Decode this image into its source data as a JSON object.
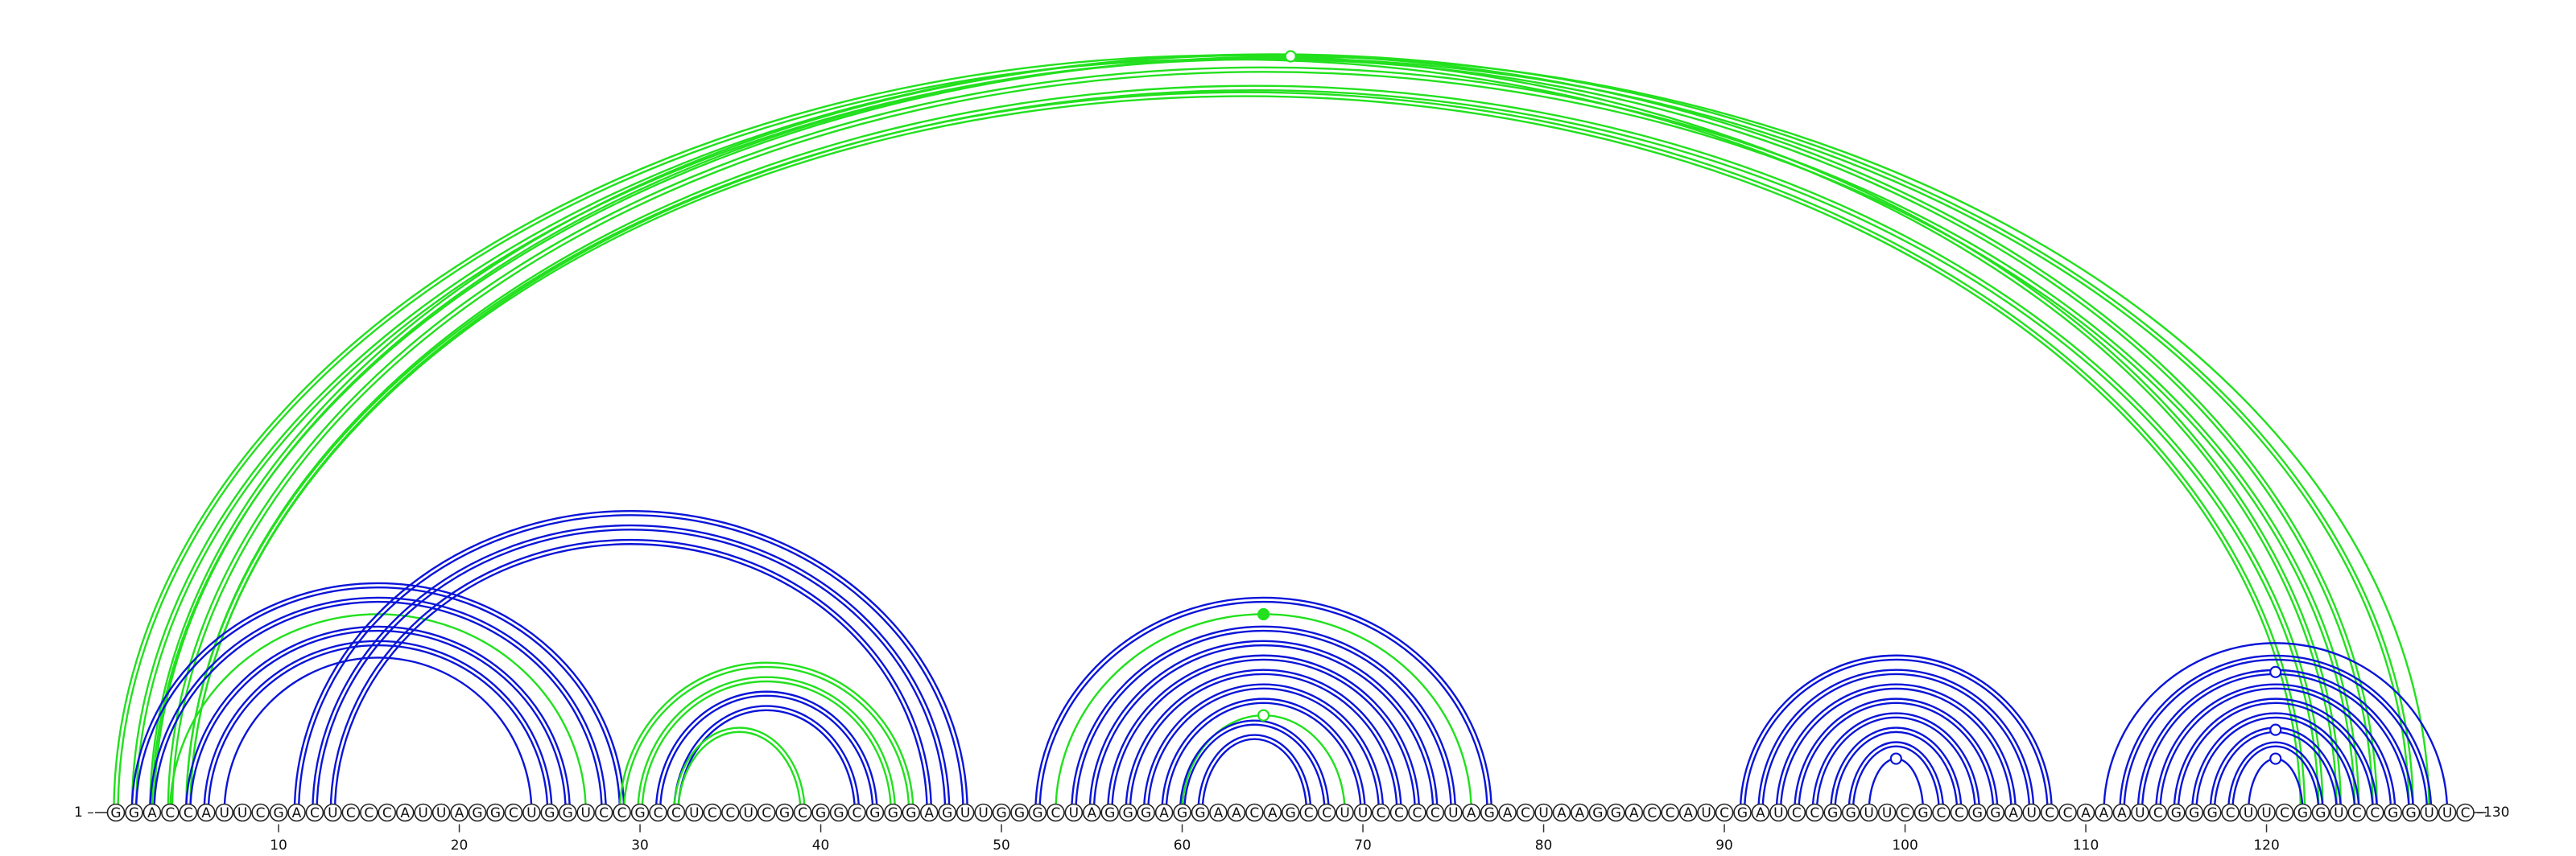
{
  "diagram": {
    "sequence": "GGACCAUUCGACUCCCAUUAGGCUGGUCCGCCUCCUCGCGGCGGGAGUUGGGCUAGGGAGGAACAGCCUUCCCCUAGACUAAGGACCAUCGAUCCGGUUCGCCGGAUCCAAAUCGGGCUUCGGUCCGGUUC",
    "start_label": "1 –",
    "end_label": "–130",
    "tick_labels": [
      "10",
      "20",
      "30",
      "40",
      "50",
      "60",
      "70",
      "80",
      "90",
      "100",
      "110",
      "120"
    ],
    "colors": {
      "blue": "#0a14d8",
      "green": "#22e01e",
      "circle_stroke": "#222222",
      "background": "#ffffff"
    }
  },
  "chart_data": {
    "type": "arc-diagram",
    "positions": [
      1,
      130
    ],
    "tick_values": [
      10,
      20,
      30,
      40,
      50,
      60,
      70,
      80,
      90,
      100,
      110,
      120
    ],
    "arcs": [
      {
        "i": 1,
        "j": 124,
        "color": "green",
        "double": true
      },
      {
        "i": 2,
        "j": 128,
        "color": "green",
        "double": true
      },
      {
        "i": 3,
        "j": 126,
        "color": "green",
        "double": true
      },
      {
        "i": 3,
        "j": 129,
        "color": "green",
        "double": false,
        "marker": "open"
      },
      {
        "i": 4,
        "j": 125,
        "color": "green",
        "double": true
      },
      {
        "i": 5,
        "j": 122,
        "color": "green",
        "double": true
      },
      {
        "i": 5,
        "j": 123,
        "color": "green",
        "double": true
      },
      {
        "i": 2,
        "j": 29,
        "color": "blue",
        "double": true
      },
      {
        "i": 3,
        "j": 28,
        "color": "blue",
        "double": true
      },
      {
        "i": 4,
        "j": 27,
        "color": "green",
        "double": false
      },
      {
        "i": 5,
        "j": 26,
        "color": "blue",
        "double": true
      },
      {
        "i": 6,
        "j": 25,
        "color": "blue",
        "double": true
      },
      {
        "i": 7,
        "j": 24,
        "color": "blue",
        "double": false
      },
      {
        "i": 11,
        "j": 48,
        "color": "blue",
        "double": true
      },
      {
        "i": 12,
        "j": 47,
        "color": "blue",
        "double": true
      },
      {
        "i": 13,
        "j": 46,
        "color": "blue",
        "double": true
      },
      {
        "i": 29,
        "j": 45,
        "color": "green",
        "double": true
      },
      {
        "i": 30,
        "j": 44,
        "color": "green",
        "double": true
      },
      {
        "i": 31,
        "j": 43,
        "color": "blue",
        "double": true
      },
      {
        "i": 32,
        "j": 42,
        "color": "blue",
        "double": true
      },
      {
        "i": 32,
        "j": 39,
        "color": "green",
        "double": true
      },
      {
        "i": 52,
        "j": 77,
        "color": "blue",
        "double": true
      },
      {
        "i": 53,
        "j": 76,
        "color": "green",
        "double": false,
        "marker": "filled"
      },
      {
        "i": 54,
        "j": 75,
        "color": "blue",
        "double": true
      },
      {
        "i": 55,
        "j": 74,
        "color": "blue",
        "double": true
      },
      {
        "i": 56,
        "j": 73,
        "color": "blue",
        "double": true
      },
      {
        "i": 57,
        "j": 72,
        "color": "blue",
        "double": true
      },
      {
        "i": 58,
        "j": 71,
        "color": "blue",
        "double": true
      },
      {
        "i": 59,
        "j": 70,
        "color": "blue",
        "double": true
      },
      {
        "i": 60,
        "j": 69,
        "color": "green",
        "double": false,
        "marker": "open"
      },
      {
        "i": 60,
        "j": 68,
        "color": "blue",
        "double": true
      },
      {
        "i": 61,
        "j": 67,
        "color": "blue",
        "double": true
      },
      {
        "i": 91,
        "j": 108,
        "color": "blue",
        "double": true
      },
      {
        "i": 92,
        "j": 107,
        "color": "blue",
        "double": true
      },
      {
        "i": 93,
        "j": 106,
        "color": "blue",
        "double": true
      },
      {
        "i": 94,
        "j": 105,
        "color": "blue",
        "double": true
      },
      {
        "i": 95,
        "j": 104,
        "color": "blue",
        "double": true
      },
      {
        "i": 96,
        "j": 103,
        "color": "blue",
        "double": true
      },
      {
        "i": 97,
        "j": 102,
        "color": "blue",
        "double": true
      },
      {
        "i": 98,
        "j": 101,
        "color": "blue",
        "double": false,
        "marker": "open"
      },
      {
        "i": 111,
        "j": 130,
        "color": "blue",
        "double": false
      },
      {
        "i": 112,
        "j": 129,
        "color": "blue",
        "double": true
      },
      {
        "i": 113,
        "j": 128,
        "color": "blue",
        "double": true,
        "marker": "open"
      },
      {
        "i": 114,
        "j": 127,
        "color": "blue",
        "double": true
      },
      {
        "i": 115,
        "j": 126,
        "color": "blue",
        "double": true
      },
      {
        "i": 116,
        "j": 125,
        "color": "blue",
        "double": true
      },
      {
        "i": 117,
        "j": 124,
        "color": "blue",
        "double": true,
        "marker": "open"
      },
      {
        "i": 118,
        "j": 123,
        "color": "blue",
        "double": true
      },
      {
        "i": 119,
        "j": 122,
        "color": "blue",
        "double": false,
        "marker": "open"
      }
    ]
  }
}
